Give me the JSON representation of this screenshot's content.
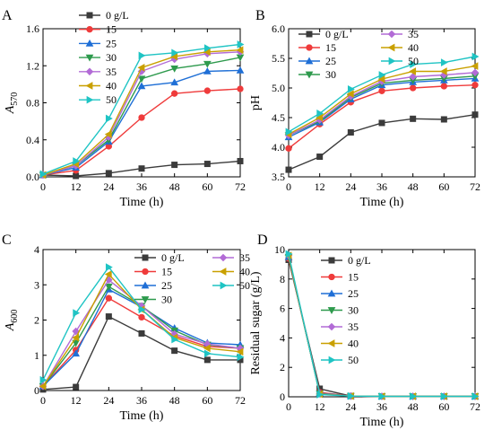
{
  "figure": {
    "chart_data": [
      {
        "type": "line",
        "panel_label": "A",
        "xlabel": "Time (h)",
        "ylabel": "A",
        "ylabel_sub": "570",
        "xlim": [
          0,
          72
        ],
        "ylim": [
          0,
          1.6
        ],
        "xticks": [
          0,
          12,
          24,
          36,
          48,
          60,
          72
        ],
        "yticks": [
          0.0,
          0.4,
          0.8,
          1.2,
          1.6
        ],
        "ytick_decimals": 1,
        "legend_columns": 1,
        "x": [
          0,
          12,
          24,
          36,
          48,
          60,
          72
        ],
        "series": [
          {
            "name": "0 g/L",
            "values": [
              0.02,
              0.01,
              0.04,
              0.09,
              0.13,
              0.14,
              0.17
            ]
          },
          {
            "name": "15",
            "values": [
              0.02,
              0.07,
              0.33,
              0.64,
              0.9,
              0.93,
              0.95
            ]
          },
          {
            "name": "25",
            "values": [
              0.02,
              0.1,
              0.38,
              0.98,
              1.02,
              1.14,
              1.15
            ]
          },
          {
            "name": "30",
            "values": [
              0.02,
              0.12,
              0.4,
              1.06,
              1.17,
              1.22,
              1.29
            ]
          },
          {
            "name": "35",
            "values": [
              0.02,
              0.12,
              0.43,
              1.14,
              1.27,
              1.33,
              1.35
            ]
          },
          {
            "name": "40",
            "values": [
              0.02,
              0.14,
              0.46,
              1.18,
              1.3,
              1.35,
              1.37
            ]
          },
          {
            "name": "50",
            "values": [
              0.03,
              0.17,
              0.63,
              1.31,
              1.34,
              1.39,
              1.43
            ]
          }
        ]
      },
      {
        "type": "line",
        "panel_label": "B",
        "xlabel": "Time (h)",
        "ylabel": "pH",
        "ylabel_sub": "",
        "xlim": [
          0,
          72
        ],
        "ylim": [
          3.5,
          6.0
        ],
        "xticks": [
          0,
          12,
          24,
          36,
          48,
          60,
          72
        ],
        "yticks": [
          3.5,
          4.0,
          4.5,
          5.0,
          5.5,
          6.0
        ],
        "ytick_decimals": 1,
        "legend_columns": 2,
        "x": [
          0,
          12,
          24,
          36,
          48,
          60,
          72
        ],
        "series": [
          {
            "name": "0 g/L",
            "values": [
              3.62,
              3.84,
              4.25,
              4.41,
              4.48,
              4.47,
              4.55
            ]
          },
          {
            "name": "15",
            "values": [
              3.98,
              4.39,
              4.76,
              4.95,
              5.0,
              5.03,
              5.05
            ]
          },
          {
            "name": "25",
            "values": [
              4.17,
              4.42,
              4.81,
              5.05,
              5.1,
              5.13,
              5.16
            ]
          },
          {
            "name": "30",
            "values": [
              4.2,
              4.44,
              4.84,
              5.08,
              5.13,
              5.16,
              5.2
            ]
          },
          {
            "name": "35",
            "values": [
              4.2,
              4.46,
              4.86,
              5.11,
              5.19,
              5.22,
              5.26
            ]
          },
          {
            "name": "40",
            "values": [
              4.22,
              4.5,
              4.9,
              5.15,
              5.28,
              5.28,
              5.37
            ]
          },
          {
            "name": "50",
            "values": [
              4.26,
              4.57,
              4.98,
              5.22,
              5.4,
              5.43,
              5.53
            ]
          }
        ]
      },
      {
        "type": "line",
        "panel_label": "C",
        "xlabel": "Time (h)",
        "ylabel": "A",
        "ylabel_sub": "600",
        "xlim": [
          0,
          72
        ],
        "ylim": [
          0,
          4
        ],
        "xticks": [
          0,
          12,
          24,
          36,
          48,
          60,
          72
        ],
        "yticks": [
          0,
          1,
          2,
          3,
          4
        ],
        "ytick_decimals": 0,
        "legend_columns": 2,
        "x": [
          0,
          12,
          24,
          36,
          48,
          60,
          72
        ],
        "series": [
          {
            "name": "0 g/L",
            "values": [
              0.03,
              0.1,
              2.1,
              1.62,
              1.13,
              0.87,
              0.87
            ]
          },
          {
            "name": "15",
            "values": [
              0.12,
              1.15,
              2.62,
              2.08,
              1.55,
              1.25,
              1.2
            ]
          },
          {
            "name": "25",
            "values": [
              0.12,
              1.05,
              2.87,
              2.37,
              1.77,
              1.35,
              1.3
            ]
          },
          {
            "name": "30",
            "values": [
              0.12,
              1.35,
              2.95,
              2.4,
              1.7,
              1.3,
              1.2
            ]
          },
          {
            "name": "35",
            "values": [
              0.12,
              1.68,
              3.14,
              2.4,
              1.6,
              1.32,
              1.2
            ]
          },
          {
            "name": "40",
            "values": [
              0.12,
              1.5,
              3.3,
              2.3,
              1.5,
              1.2,
              1.1
            ]
          },
          {
            "name": "50",
            "values": [
              0.3,
              2.2,
              3.5,
              2.3,
              1.45,
              1.05,
              0.95
            ]
          }
        ]
      },
      {
        "type": "line",
        "panel_label": "D",
        "xlabel": "Time (h)",
        "ylabel": "Residual sugar (g/L)",
        "ylabel_sub": "",
        "xlim": [
          0,
          72
        ],
        "ylim": [
          0,
          10
        ],
        "xticks": [
          0,
          12,
          24,
          36,
          48,
          60,
          72
        ],
        "yticks": [
          0,
          2,
          4,
          6,
          8,
          10
        ],
        "ytick_decimals": 0,
        "legend_columns": 1,
        "x": [
          0,
          12,
          24,
          36,
          48,
          60,
          72
        ],
        "series": [
          {
            "name": "0 g/L",
            "values": [
              9.3,
              0.55,
              0.05,
              0.03,
              0.03,
              0.03,
              0.03
            ]
          },
          {
            "name": "15",
            "values": [
              9.4,
              0.3,
              0.05,
              0.03,
              0.03,
              0.03,
              0.03
            ]
          },
          {
            "name": "25",
            "values": [
              9.5,
              0.25,
              0.05,
              0.03,
              0.03,
              0.03,
              0.03
            ]
          },
          {
            "name": "30",
            "values": [
              9.5,
              0.22,
              0.05,
              0.03,
              0.03,
              0.03,
              0.03
            ]
          },
          {
            "name": "35",
            "values": [
              9.6,
              0.2,
              0.05,
              0.03,
              0.03,
              0.03,
              0.03
            ]
          },
          {
            "name": "40",
            "values": [
              9.6,
              0.18,
              0.05,
              0.03,
              0.03,
              0.03,
              0.03
            ]
          },
          {
            "name": "50",
            "values": [
              9.7,
              0.15,
              0.05,
              0.03,
              0.03,
              0.03,
              0.03
            ]
          }
        ]
      }
    ],
    "series_styles": [
      {
        "color": "#3b3b3b",
        "marker": "square"
      },
      {
        "color": "#ef3b3b",
        "marker": "circle"
      },
      {
        "color": "#1f6fd6",
        "marker": "triangle-up"
      },
      {
        "color": "#2e9a4d",
        "marker": "triangle-down"
      },
      {
        "color": "#b26bd6",
        "marker": "diamond"
      },
      {
        "color": "#c9a000",
        "marker": "triangle-left"
      },
      {
        "color": "#1fc4c4",
        "marker": "triangle-right"
      }
    ]
  }
}
